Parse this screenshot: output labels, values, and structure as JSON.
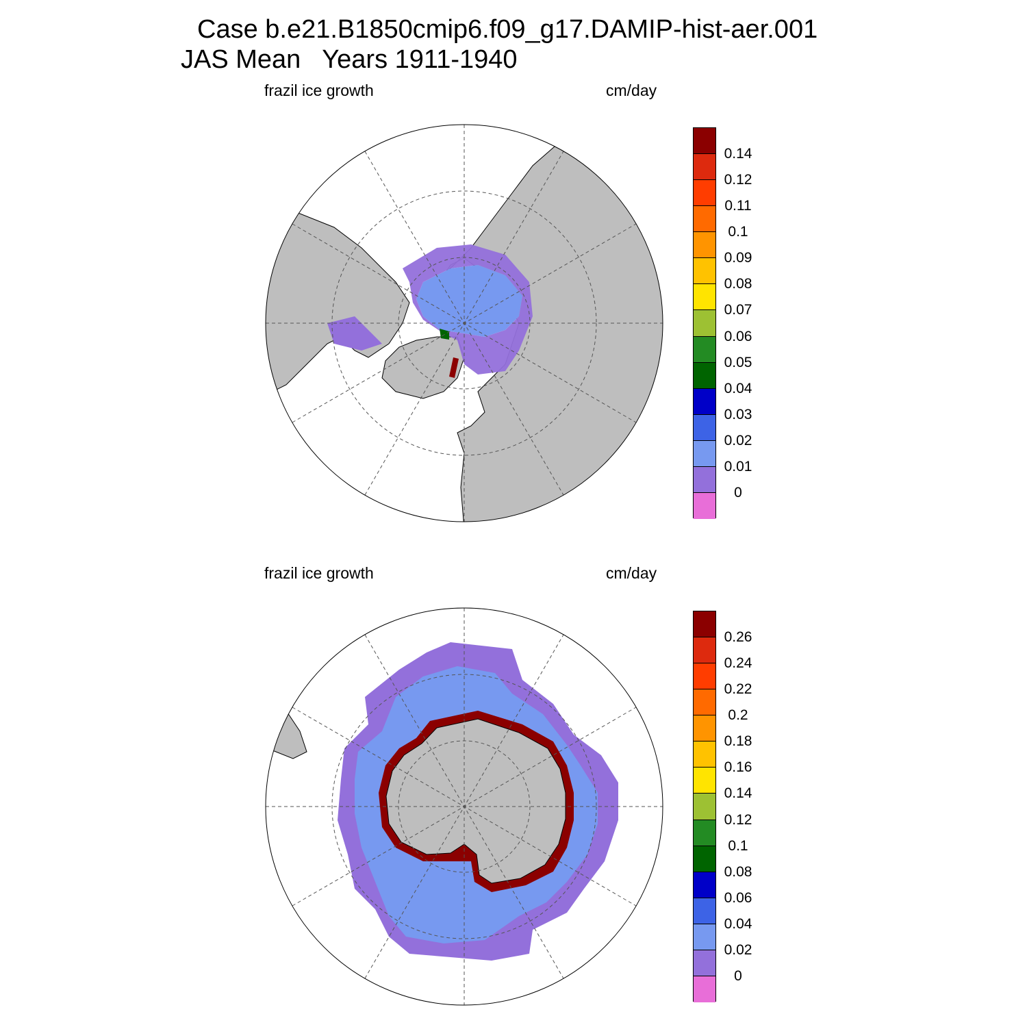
{
  "title": {
    "line1": "Case b.e21.B1850cmip6.f09_g17.DAMIP-hist-aer.001",
    "line2": "JAS Mean   Years 1911-1940"
  },
  "panels": [
    {
      "id": "north",
      "hemisphere": "northern",
      "variable_label": "frazil ice growth",
      "units_label": "cm/day",
      "colorbar": {
        "labels": [
          "0.14",
          "0.12",
          "0.11",
          "0.1",
          "0.09",
          "0.08",
          "0.07",
          "0.06",
          "0.05",
          "0.04",
          "0.03",
          "0.02",
          "0.01",
          "0"
        ],
        "colors": [
          "#8b0000",
          "#dd2a0e",
          "#ff3d00",
          "#ff6a00",
          "#ff9400",
          "#ffc200",
          "#ffe400",
          "#9dc133",
          "#238b23",
          "#006400",
          "#0000c8",
          "#3d63e6",
          "#7799f0",
          "#9370db",
          "#e86ed8"
        ]
      }
    },
    {
      "id": "south",
      "hemisphere": "southern",
      "variable_label": "frazil ice growth",
      "units_label": "cm/day",
      "colorbar": {
        "labels": [
          "0.26",
          "0.24",
          "0.22",
          "0.2",
          "0.18",
          "0.16",
          "0.14",
          "0.12",
          "0.1",
          "0.08",
          "0.06",
          "0.04",
          "0.02",
          "0"
        ],
        "colors": [
          "#8b0000",
          "#dd2a0e",
          "#ff3d00",
          "#ff6a00",
          "#ff9400",
          "#ffc200",
          "#ffe400",
          "#9dc133",
          "#238b23",
          "#006400",
          "#0000c8",
          "#3d63e6",
          "#7799f0",
          "#9370db",
          "#e86ed8"
        ]
      }
    }
  ],
  "map_colors": {
    "land": "#bebebe",
    "ocean": "#ffffff",
    "coast": "#000000",
    "grid": "#555555"
  }
}
